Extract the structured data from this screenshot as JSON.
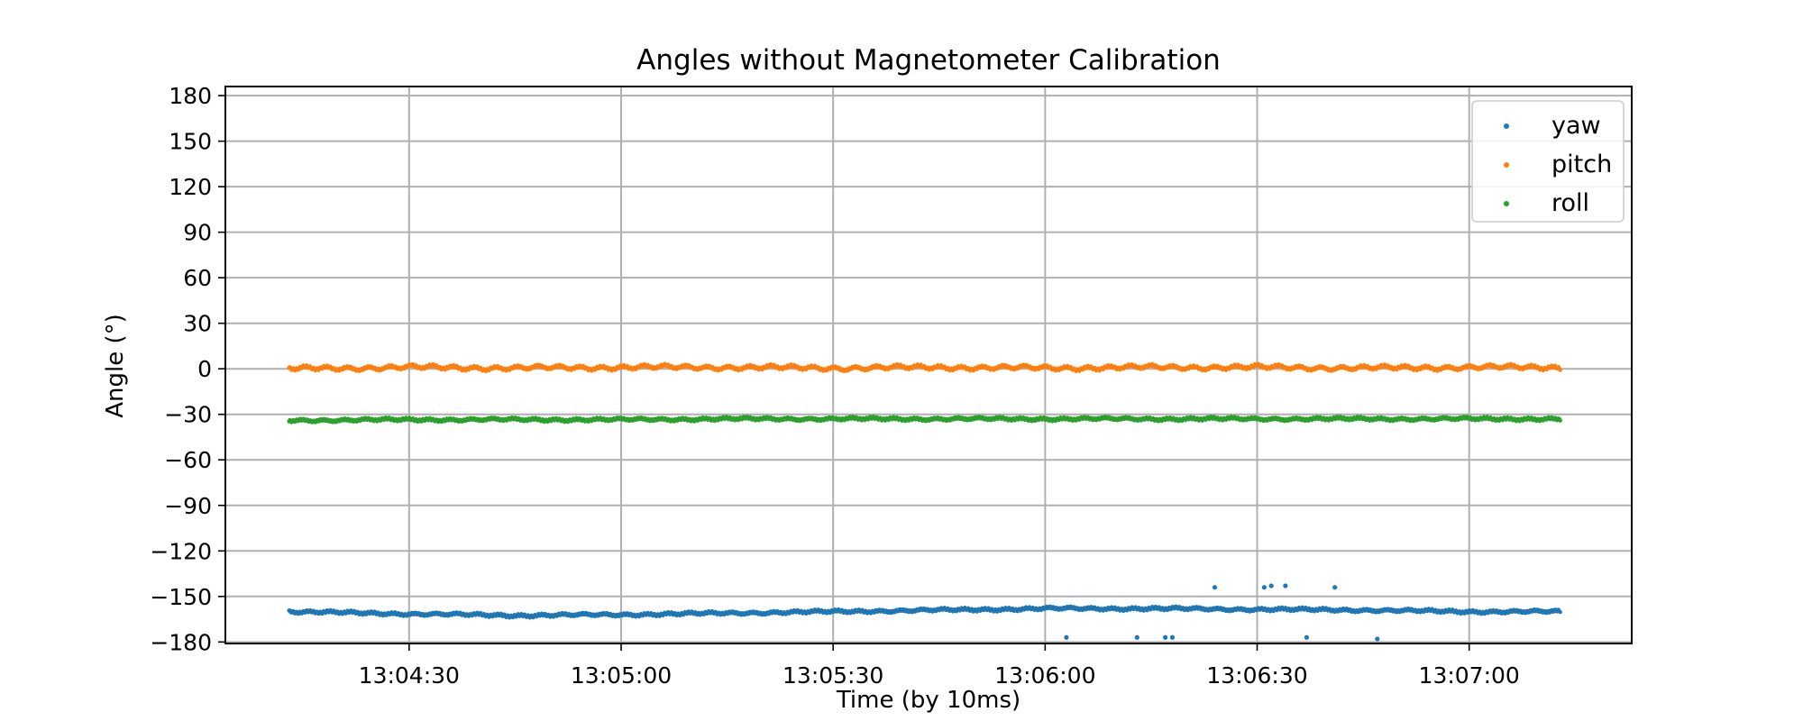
{
  "chart_data": {
    "type": "scatter",
    "title": "Angles without Magnetometer Calibration",
    "xlabel": "Time (by 10ms)",
    "ylabel": "Angle (°)",
    "x_range": [
      "13:04:04",
      "13:07:23"
    ],
    "xlim": [
      "13:04:04",
      "13:07:23"
    ],
    "xticks": [
      "13:04:30",
      "13:05:00",
      "13:05:30",
      "13:06:00",
      "13:06:30",
      "13:07:00"
    ],
    "ylim": [
      -181,
      186
    ],
    "yticks": [
      180,
      150,
      120,
      90,
      60,
      30,
      0,
      -30,
      -60,
      -90,
      -120,
      -150,
      -180
    ],
    "ytick_labels": [
      "180",
      "150",
      "120",
      "90",
      "60",
      "30",
      "0",
      "−30",
      "−60",
      "−90",
      "−120",
      "−150",
      "−180"
    ],
    "grid": true,
    "legend_position": "top-right",
    "series": [
      {
        "name": "yaw",
        "color": "#1f77b4",
        "x": [
          "13:04:13",
          "13:04:30",
          "13:04:45",
          "13:05:00",
          "13:05:15",
          "13:05:30",
          "13:05:45",
          "13:06:00",
          "13:06:15",
          "13:06:30",
          "13:06:45",
          "13:07:00",
          "13:07:13"
        ],
        "y": [
          -160,
          -161.5,
          -162.5,
          -162,
          -161,
          -160,
          -159,
          -158,
          -158,
          -158.5,
          -159,
          -160,
          -160
        ],
        "outliers": {
          "x": [
            "13:06:03",
            "13:06:13",
            "13:06:17",
            "13:06:18",
            "13:06:24",
            "13:06:31",
            "13:06:32",
            "13:06:34",
            "13:06:37",
            "13:06:41",
            "13:06:47"
          ],
          "y": [
            -177,
            -177,
            -177,
            -177,
            -144,
            -144,
            -143,
            -143,
            -177,
            -144,
            -178
          ]
        }
      },
      {
        "name": "pitch",
        "color": "#ff7f0e",
        "x": [
          "13:04:13",
          "13:04:30",
          "13:04:45",
          "13:05:00",
          "13:05:15",
          "13:05:30",
          "13:05:45",
          "13:06:00",
          "13:06:15",
          "13:06:30",
          "13:06:45",
          "13:07:00",
          "13:07:13"
        ],
        "y": [
          0,
          1,
          0.5,
          1,
          1,
          0.5,
          1,
          0.5,
          1,
          1,
          0.5,
          1,
          1
        ]
      },
      {
        "name": "roll",
        "color": "#2ca02c",
        "x": [
          "13:04:13",
          "13:04:30",
          "13:04:45",
          "13:05:00",
          "13:05:15",
          "13:05:30",
          "13:05:45",
          "13:06:00",
          "13:06:15",
          "13:06:30",
          "13:06:45",
          "13:07:00",
          "13:07:13"
        ],
        "y": [
          -34,
          -33.5,
          -33.5,
          -33.5,
          -33,
          -33,
          -33,
          -33,
          -33,
          -33,
          -33,
          -33,
          -33
        ]
      }
    ]
  }
}
